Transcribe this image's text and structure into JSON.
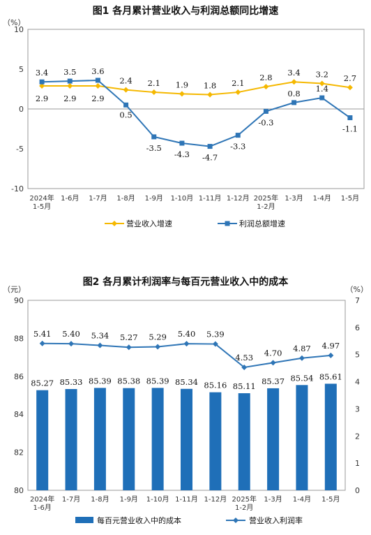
{
  "chart_data": [
    {
      "type": "line",
      "title": "图1 各月累计营业收入与利润总额同比增速",
      "y_unit": "（%）",
      "ylim": [
        -10,
        10
      ],
      "yticks": [
        10,
        5,
        0,
        -5,
        -10
      ],
      "categories": [
        [
          "2024年",
          "1-5月"
        ],
        [
          "1-6月"
        ],
        [
          "1-7月"
        ],
        [
          "1-8月"
        ],
        [
          "1-9月"
        ],
        [
          "1-10月"
        ],
        [
          "1-11月"
        ],
        [
          "1-12月"
        ],
        [
          "2025年",
          "1-2月"
        ],
        [
          "1-3月"
        ],
        [
          "1-4月"
        ],
        [
          "1-5月"
        ]
      ],
      "series": [
        {
          "name": "营业收入增速",
          "color": "#f5b800",
          "values": [
            2.9,
            2.9,
            2.9,
            2.4,
            2.1,
            1.9,
            1.8,
            2.1,
            2.8,
            3.4,
            3.2,
            2.7
          ],
          "labels": [
            "2.9",
            "2.9",
            "2.9",
            "2.4",
            "2.1",
            "1.9",
            "1.8",
            "2.1",
            "2.8",
            "3.4",
            "3.2",
            "2.7"
          ]
        },
        {
          "name": "利润总额增速",
          "color": "#2e75b6",
          "values": [
            3.4,
            3.5,
            3.6,
            0.5,
            -3.5,
            -4.3,
            -4.7,
            -3.3,
            -0.3,
            0.8,
            1.4,
            -1.1
          ],
          "labels": [
            "3.4",
            "3.5",
            "3.6",
            "0.5",
            "-3.5",
            "-4.3",
            "-4.7",
            "-3.3",
            "-0.3",
            "0.8",
            "1.4",
            "-1.1"
          ]
        }
      ],
      "grid": false,
      "legend": "bottom"
    },
    {
      "type": "bar+line",
      "title": "图2 各月累计利润率与每百元营业收入中的成本",
      "y_unit_left": "（元）",
      "y_unit_right": "（%）",
      "ylim_left": [
        80,
        90
      ],
      "yticks_left": [
        90,
        88,
        86,
        84,
        82,
        80
      ],
      "ylim_right": [
        0,
        7
      ],
      "yticks_right": [
        7,
        6,
        5,
        4,
        3,
        2,
        1,
        0
      ],
      "categories": [
        [
          "2024年",
          "1-6月"
        ],
        [
          "1-7月"
        ],
        [
          "1-8月"
        ],
        [
          "1-9月"
        ],
        [
          "1-10月"
        ],
        [
          "1-11月"
        ],
        [
          "1-12月"
        ],
        [
          "2025年",
          "1-2月"
        ],
        [
          "1-3月"
        ],
        [
          "1-4月"
        ],
        [
          "1-5月"
        ]
      ],
      "bar_series": {
        "name": "每百元营业收入中的成本",
        "color": "#1f6fb8",
        "values": [
          85.27,
          85.33,
          85.39,
          85.38,
          85.39,
          85.34,
          85.16,
          85.11,
          85.37,
          85.54,
          85.61
        ],
        "labels": [
          "85.27",
          "85.33",
          "85.39",
          "85.38",
          "85.39",
          "85.34",
          "85.16",
          "85.11",
          "85.37",
          "85.54",
          "85.61"
        ]
      },
      "line_series": {
        "name": "营业收入利润率",
        "color": "#2e75b6",
        "values": [
          5.41,
          5.4,
          5.34,
          5.27,
          5.29,
          5.4,
          5.39,
          4.53,
          4.7,
          4.87,
          4.97
        ],
        "labels": [
          "5.41",
          "5.40",
          "5.34",
          "5.27",
          "5.29",
          "5.40",
          "5.39",
          "4.53",
          "4.70",
          "4.87",
          "4.97"
        ]
      },
      "grid": false,
      "legend": "bottom"
    }
  ]
}
